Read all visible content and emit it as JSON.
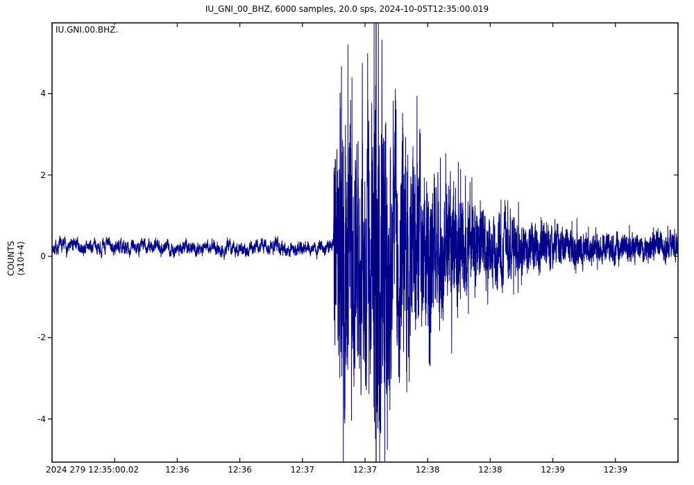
{
  "figure": {
    "kind": "seismogram-plot-window"
  },
  "colors": {
    "background": "#ffffff",
    "axis": "#000000",
    "text": "#000000",
    "trace": "#00008b",
    "marker_line": "#000033"
  },
  "chart_data": {
    "type": "line",
    "subtype": "seismogram",
    "title": "IU_GNI_00_BHZ, 6000 samples, 20.0 sps, 2024-10-05T12:35:00.019",
    "trace_id": "IU.GNI.00.BHZ.",
    "n_samples": 6000,
    "sampling_rate_sps": 20.0,
    "duration_s": 300,
    "ylabel": [
      "COUNTS",
      "(x10+4)"
    ],
    "y_units": "counts x 10^4",
    "ylim": [
      -5.06,
      5.74
    ],
    "y_ticks": [
      4,
      2,
      0,
      -2,
      -4
    ],
    "x_ticks": [
      {
        "t": 0,
        "label": "2024 279 12:35:00.02"
      },
      {
        "t": 30,
        "label": ""
      },
      {
        "t": 60,
        "label": "12:36"
      },
      {
        "t": 90,
        "label": "12:36"
      },
      {
        "t": 120,
        "label": "12:37"
      },
      {
        "t": 150,
        "label": "12:37"
      },
      {
        "t": 180,
        "label": "12:38"
      },
      {
        "t": 210,
        "label": "12:38"
      },
      {
        "t": 240,
        "label": "12:39"
      },
      {
        "t": 270,
        "label": "12:39"
      },
      {
        "t": 300,
        "label": ""
      }
    ],
    "grid": false,
    "baseline_offset": 0.22,
    "quiet_noise_peak": 0.18,
    "event": {
      "onset_s": 135.0,
      "peak_amplitude": 5.5,
      "min_amplitude": -4.7
    },
    "marker_time_s": 155.3,
    "envelope": [
      [
        0,
        0.18
      ],
      [
        134.8,
        0.18
      ],
      [
        135.2,
        3.4
      ],
      [
        138.7,
        4.5
      ],
      [
        143,
        3.3
      ],
      [
        149,
        3.2
      ],
      [
        153,
        3.8
      ],
      [
        156,
        5.3
      ],
      [
        159,
        4.6
      ],
      [
        163,
        3.2
      ],
      [
        167,
        3.4
      ],
      [
        171,
        2.9
      ],
      [
        175,
        2.6
      ],
      [
        179,
        2.3
      ],
      [
        184,
        2.0
      ],
      [
        190,
        1.7
      ],
      [
        197,
        1.3
      ],
      [
        205,
        1.05
      ],
      [
        214,
        0.9
      ],
      [
        224,
        0.75
      ],
      [
        235,
        0.6
      ],
      [
        248,
        0.5
      ],
      [
        262,
        0.42
      ],
      [
        280,
        0.38
      ],
      [
        300,
        0.36
      ]
    ],
    "spikes": [
      [
        137.9,
        -3.2
      ],
      [
        138.7,
        4.45
      ],
      [
        140.6,
        3.0
      ],
      [
        151.9,
        -3.6
      ],
      [
        155.0,
        -4.7
      ],
      [
        156.4,
        5.5
      ],
      [
        157.3,
        -4.5
      ],
      [
        158.1,
        5.1
      ],
      [
        160.2,
        -3.6
      ],
      [
        163.5,
        3.6
      ],
      [
        168.0,
        3.3
      ],
      [
        171.2,
        -3.3
      ],
      [
        176.5,
        2.8
      ],
      [
        181.0,
        -2.9
      ],
      [
        186.1,
        2.2
      ],
      [
        191.5,
        -2.6
      ],
      [
        200.3,
        1.6
      ],
      [
        208.8,
        -1.4
      ],
      [
        218.4,
        1.15
      ]
    ],
    "seed": 7
  }
}
